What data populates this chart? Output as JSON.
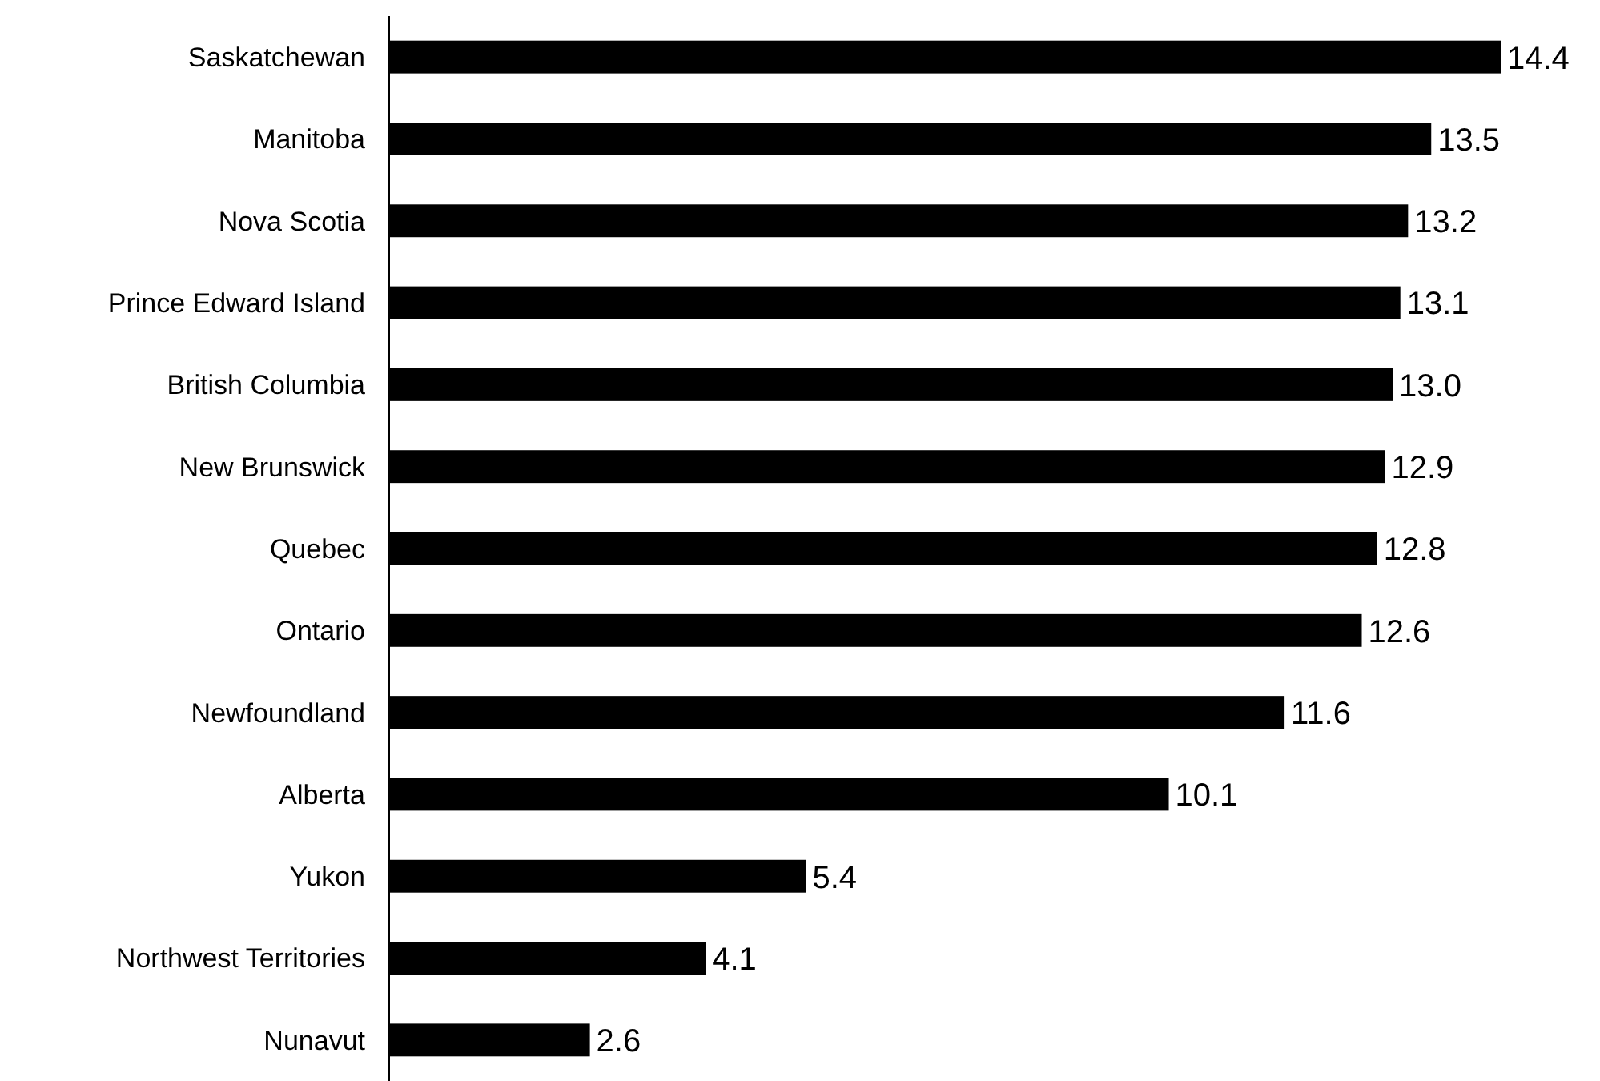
{
  "chart_data": {
    "type": "bar",
    "orientation": "horizontal",
    "categories": [
      "Saskatchewan",
      "Manitoba",
      "Nova Scotia",
      "Prince Edward Island",
      "British Columbia",
      "New Brunswick",
      "Quebec",
      "Ontario",
      "Newfoundland",
      "Alberta",
      "Yukon",
      "Northwest Territories",
      "Nunavut"
    ],
    "values": [
      14.4,
      13.5,
      13.2,
      13.1,
      13.0,
      12.9,
      12.8,
      12.6,
      11.6,
      10.1,
      5.4,
      4.1,
      2.6
    ],
    "value_labels": [
      "14.4",
      "13.5",
      "13.2",
      "13.1",
      "13.0",
      "12.9",
      "12.8",
      "12.6",
      "11.6",
      "10.1",
      "5.4",
      "4.1",
      "2.6"
    ],
    "color": "#000000",
    "xlim": [
      0,
      14.4
    ],
    "tick_labels": "y"
  }
}
